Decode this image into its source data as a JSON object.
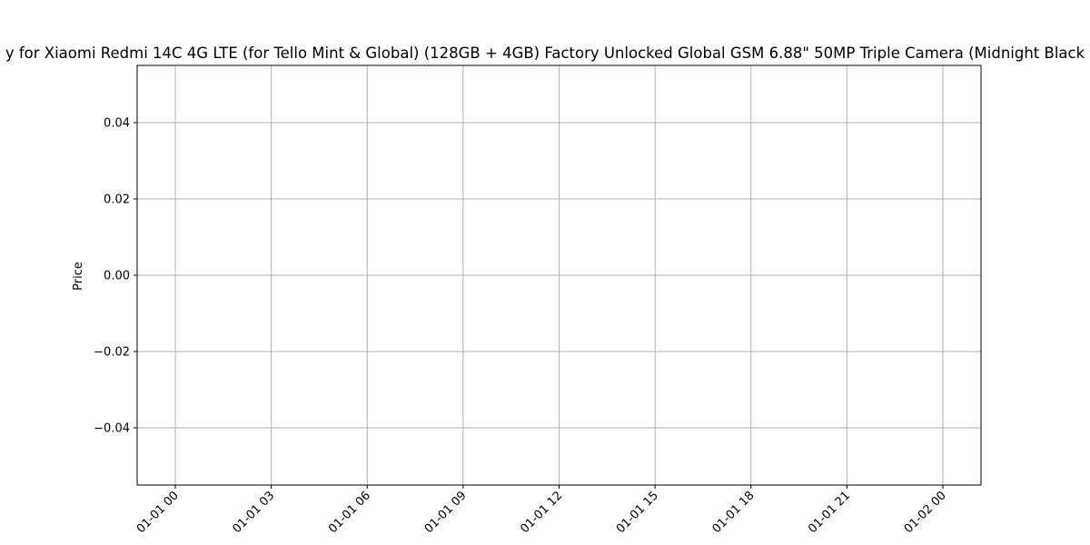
{
  "chart_data": {
    "type": "line",
    "title": "y for Xiaomi Redmi 14C 4G LTE (for Tello Mint & Global) (128GB + 4GB) Factory Unlocked Global GSM 6.88\" 50MP Triple Camera (Midnight Black",
    "xlabel": "",
    "ylabel": "Price",
    "x_ticks": [
      "01-01 00",
      "01-01 03",
      "01-01 06",
      "01-01 09",
      "01-01 12",
      "01-01 15",
      "01-01 18",
      "01-01 21",
      "01-02 00"
    ],
    "y_ticks": [
      "0.04",
      "0.02",
      "0.00",
      "−0.02",
      "−0.04"
    ],
    "ylim": [
      -0.055,
      0.055
    ],
    "grid": true,
    "series": []
  }
}
